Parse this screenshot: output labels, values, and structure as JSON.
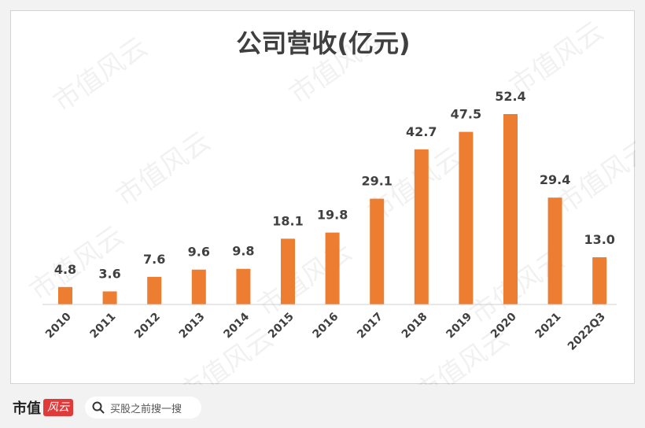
{
  "chart_data": {
    "type": "bar",
    "title": "公司营收(亿元)",
    "categories": [
      "2010",
      "2011",
      "2012",
      "2013",
      "2014",
      "2015",
      "2016",
      "2017",
      "2018",
      "2019",
      "2020",
      "2021",
      "2022Q3"
    ],
    "values": [
      4.8,
      3.6,
      7.6,
      9.6,
      9.8,
      18.1,
      19.8,
      29.1,
      42.7,
      47.5,
      52.4,
      29.4,
      13.0
    ],
    "value_labels": [
      "4.8",
      "3.6",
      "7.6",
      "9.6",
      "9.8",
      "18.1",
      "19.8",
      "29.1",
      "42.7",
      "47.5",
      "52.4",
      "29.4",
      "13.0"
    ],
    "ylim": [
      0,
      52.4
    ],
    "bar_color": "#ed7d31",
    "grid": false,
    "legend": "none"
  },
  "watermark": {
    "text": "市值风云"
  },
  "footer": {
    "brand_text": "市值",
    "brand_badge": "风云",
    "search_text": "买股之前搜一搜"
  }
}
